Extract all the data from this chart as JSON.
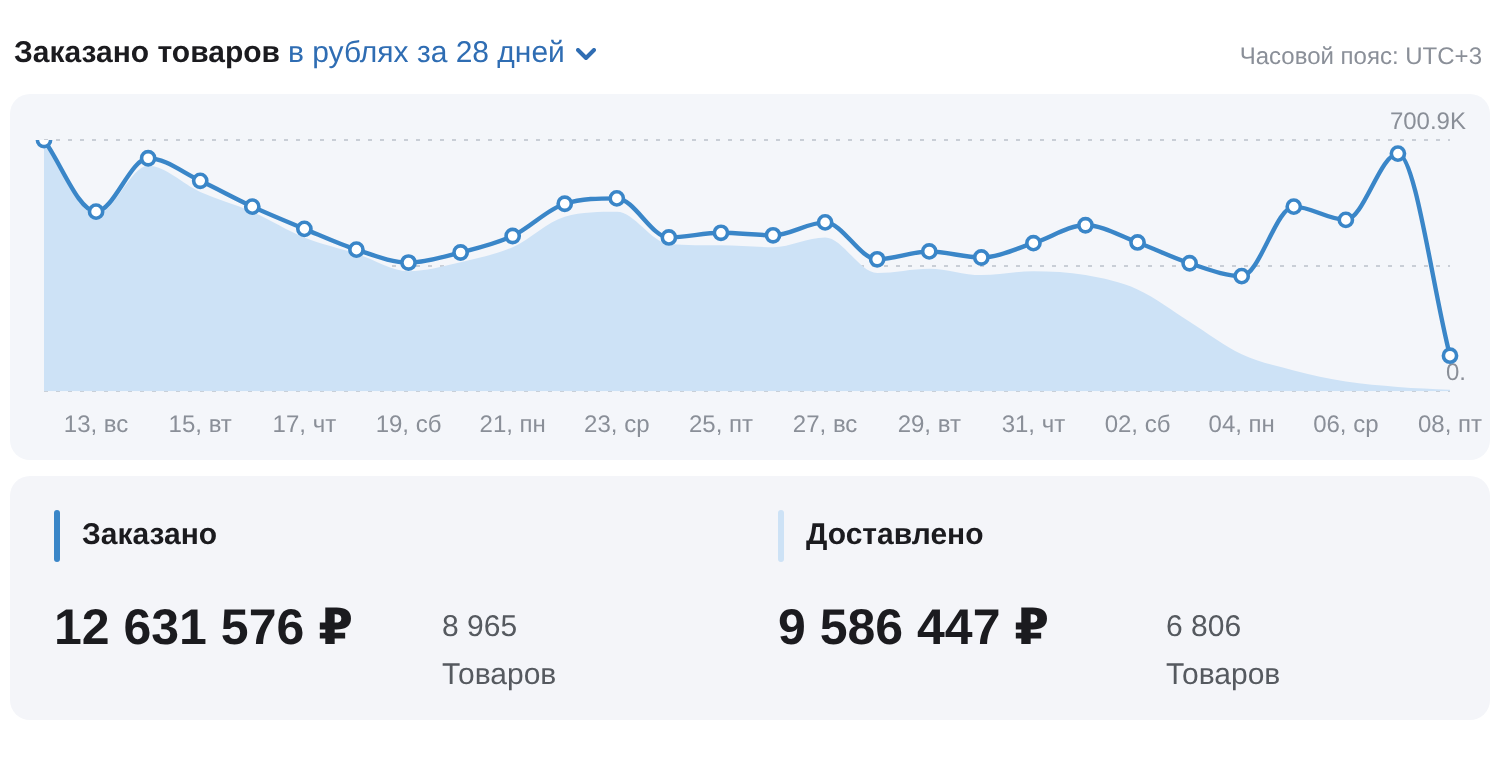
{
  "chart_data": {
    "type": "line",
    "title": "Заказано товаров",
    "subtitle": "в рублях за 28 дней",
    "annotations": [
      "Часовой пояс: UTC+3",
      "12 631 576 ₽",
      "8 965",
      "Товаров",
      "9 586 447 ₽",
      "6 806",
      "Товаров"
    ],
    "categories": [
      null,
      "13, вс",
      null,
      "15, вт",
      null,
      "17, чт",
      null,
      "19, сб",
      null,
      "21, пн",
      null,
      "23, ср",
      null,
      "25, пт",
      null,
      "27, вс",
      null,
      "29, вт",
      null,
      "31, чт",
      null,
      "02, сб",
      null,
      "04, пн",
      null,
      "06, ср",
      null,
      "08, пт"
    ],
    "series": [
      {
        "name": "Заказано",
        "marker": "circle",
        "color": "#3a86c8",
        "values": [
          700.9,
          501,
          650,
          587,
          515,
          453,
          395,
          359,
          387,
          433,
          523,
          538,
          429,
          442,
          435,
          471,
          368,
          390,
          373,
          413,
          463,
          415,
          357,
          321,
          515,
          478,
          663,
          99
        ]
      },
      {
        "name": "Доставлено",
        "type": "area",
        "marker": "none",
        "color": "#cde2f6",
        "values": [
          692,
          493,
          629,
          556,
          501,
          429,
          384,
          335,
          360,
          402,
          487,
          501,
          411,
          407,
          402,
          429,
          330,
          342,
          324,
          335,
          324,
          284,
          194,
          103,
          58,
          27,
          12,
          4
        ]
      }
    ],
    "ylim": [
      0,
      700.9
    ],
    "yticks": [
      {
        "value": 0,
        "label": "0."
      },
      {
        "value": 350.45,
        "label": null
      },
      {
        "value": 700.9,
        "label": "700.9K"
      }
    ],
    "grid": "y",
    "legend": "bottom",
    "line_style": "solid"
  }
}
